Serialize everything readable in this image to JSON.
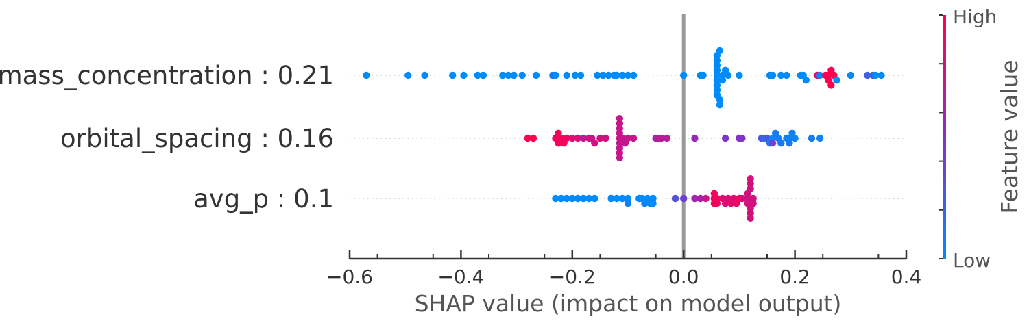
{
  "chart_data": {
    "type": "scatter",
    "title": "",
    "xlabel": "SHAP value (impact on model output)",
    "xlim": [
      -0.6,
      0.4
    ],
    "xticks": [
      "−0.6",
      "−0.4",
      "−0.2",
      "0.0",
      "0.2",
      "0.4"
    ],
    "xtick_values": [
      -0.6,
      -0.4,
      -0.2,
      0.0,
      0.2,
      0.4
    ],
    "features": [
      {
        "label": "mass_concentration : 0.21",
        "points": [
          {
            "x": -0.57,
            "v": 0.0
          },
          {
            "x": -0.495,
            "v": 0.0
          },
          {
            "x": -0.465,
            "v": 0.0
          },
          {
            "x": -0.415,
            "v": 0.0
          },
          {
            "x": -0.395,
            "v": 0.0
          },
          {
            "x": -0.37,
            "v": 0.0
          },
          {
            "x": -0.36,
            "v": 0.0
          },
          {
            "x": -0.325,
            "v": 0.0
          },
          {
            "x": -0.315,
            "v": 0.0
          },
          {
            "x": -0.305,
            "v": 0.0
          },
          {
            "x": -0.29,
            "v": 0.0
          },
          {
            "x": -0.265,
            "v": 0.0
          },
          {
            "x": -0.235,
            "v": 0.1
          },
          {
            "x": -0.23,
            "v": 0.0
          },
          {
            "x": -0.21,
            "v": 0.0
          },
          {
            "x": -0.195,
            "v": 0.0
          },
          {
            "x": -0.185,
            "v": 0.0
          },
          {
            "x": -0.155,
            "v": 0.0
          },
          {
            "x": -0.145,
            "v": 0.0
          },
          {
            "x": -0.135,
            "v": 0.0
          },
          {
            "x": -0.125,
            "v": 0.0
          },
          {
            "x": -0.12,
            "v": 0.0
          },
          {
            "x": -0.11,
            "v": 0.0
          },
          {
            "x": -0.1,
            "v": 0.0
          },
          {
            "x": -0.09,
            "v": 0.0
          },
          {
            "x": 0.0,
            "v": 0.0
          },
          {
            "x": 0.03,
            "v": 0.0
          },
          {
            "x": 0.035,
            "v": 0.0
          },
          {
            "x": 0.06,
            "v": 0.0
          },
          {
            "x": 0.06,
            "v": 0.0
          },
          {
            "x": 0.06,
            "v": 0.0
          },
          {
            "x": 0.06,
            "v": 0.0
          },
          {
            "x": 0.06,
            "v": 0.0
          },
          {
            "x": 0.06,
            "v": 0.0
          },
          {
            "x": 0.06,
            "v": 0.0
          },
          {
            "x": 0.06,
            "v": 0.0
          },
          {
            "x": 0.06,
            "v": 0.0
          },
          {
            "x": 0.065,
            "v": 0.0
          },
          {
            "x": 0.065,
            "v": 0.0
          },
          {
            "x": 0.065,
            "v": 0.0
          },
          {
            "x": 0.07,
            "v": 0.0
          },
          {
            "x": 0.07,
            "v": 0.0
          },
          {
            "x": 0.075,
            "v": 0.0
          },
          {
            "x": 0.08,
            "v": 0.0
          },
          {
            "x": 0.1,
            "v": 0.0
          },
          {
            "x": 0.155,
            "v": 0.0
          },
          {
            "x": 0.16,
            "v": 0.0
          },
          {
            "x": 0.175,
            "v": 0.0
          },
          {
            "x": 0.185,
            "v": 0.0
          },
          {
            "x": 0.21,
            "v": 0.0
          },
          {
            "x": 0.215,
            "v": 0.0
          },
          {
            "x": 0.22,
            "v": 0.0
          },
          {
            "x": 0.24,
            "v": 0.85
          },
          {
            "x": 0.245,
            "v": 0.0
          },
          {
            "x": 0.255,
            "v": 1.0
          },
          {
            "x": 0.26,
            "v": 1.0
          },
          {
            "x": 0.26,
            "v": 1.0
          },
          {
            "x": 0.265,
            "v": 1.0
          },
          {
            "x": 0.265,
            "v": 1.0
          },
          {
            "x": 0.27,
            "v": 1.0
          },
          {
            "x": 0.275,
            "v": 0.0
          },
          {
            "x": 0.3,
            "v": 0.0
          },
          {
            "x": 0.33,
            "v": 0.25
          },
          {
            "x": 0.34,
            "v": 0.2
          },
          {
            "x": 0.345,
            "v": 0.0
          },
          {
            "x": 0.355,
            "v": 0.0
          }
        ]
      },
      {
        "label": "orbital_spacing : 0.16",
        "points": [
          {
            "x": -0.28,
            "v": 1.0
          },
          {
            "x": -0.27,
            "v": 1.0
          },
          {
            "x": -0.23,
            "v": 0.95
          },
          {
            "x": -0.225,
            "v": 0.95
          },
          {
            "x": -0.22,
            "v": 0.95
          },
          {
            "x": -0.215,
            "v": 0.95
          },
          {
            "x": -0.21,
            "v": 0.95
          },
          {
            "x": -0.225,
            "v": 1.0
          },
          {
            "x": -0.2,
            "v": 0.85
          },
          {
            "x": -0.19,
            "v": 0.85
          },
          {
            "x": -0.18,
            "v": 0.7
          },
          {
            "x": -0.17,
            "v": 0.85
          },
          {
            "x": -0.165,
            "v": 0.75
          },
          {
            "x": -0.16,
            "v": 0.8
          },
          {
            "x": -0.15,
            "v": 0.8
          },
          {
            "x": -0.14,
            "v": 0.8
          },
          {
            "x": -0.115,
            "v": 0.75
          },
          {
            "x": -0.115,
            "v": 0.75
          },
          {
            "x": -0.115,
            "v": 0.75
          },
          {
            "x": -0.115,
            "v": 0.75
          },
          {
            "x": -0.115,
            "v": 0.75
          },
          {
            "x": -0.115,
            "v": 0.75
          },
          {
            "x": -0.115,
            "v": 0.75
          },
          {
            "x": -0.115,
            "v": 0.75
          },
          {
            "x": -0.115,
            "v": 0.75
          },
          {
            "x": -0.11,
            "v": 0.75
          },
          {
            "x": -0.105,
            "v": 0.75
          },
          {
            "x": -0.1,
            "v": 0.75
          },
          {
            "x": -0.09,
            "v": 0.75
          },
          {
            "x": -0.05,
            "v": 0.6
          },
          {
            "x": -0.045,
            "v": 0.7
          },
          {
            "x": -0.04,
            "v": 0.7
          },
          {
            "x": -0.03,
            "v": 0.7
          },
          {
            "x": 0.02,
            "v": 0.55
          },
          {
            "x": 0.075,
            "v": 0.45
          },
          {
            "x": 0.1,
            "v": 0.5
          },
          {
            "x": 0.105,
            "v": 0.45
          },
          {
            "x": 0.14,
            "v": 0.3
          },
          {
            "x": 0.145,
            "v": 0.15
          },
          {
            "x": 0.15,
            "v": 0.25
          },
          {
            "x": 0.155,
            "v": 0.1
          },
          {
            "x": 0.16,
            "v": 0.05
          },
          {
            "x": 0.16,
            "v": 0.4
          },
          {
            "x": 0.165,
            "v": 0.1
          },
          {
            "x": 0.17,
            "v": 0.05
          },
          {
            "x": 0.175,
            "v": 0.1
          },
          {
            "x": 0.185,
            "v": 0.05
          },
          {
            "x": 0.19,
            "v": 0.05
          },
          {
            "x": 0.19,
            "v": 0.1
          },
          {
            "x": 0.195,
            "v": 0.05
          },
          {
            "x": 0.2,
            "v": 0.05
          },
          {
            "x": 0.23,
            "v": 0.1
          },
          {
            "x": 0.245,
            "v": 0.05
          }
        ]
      },
      {
        "label": "avg_p : 0.1",
        "points": [
          {
            "x": -0.23,
            "v": 0.0
          },
          {
            "x": -0.22,
            "v": 0.0
          },
          {
            "x": -0.21,
            "v": 0.0
          },
          {
            "x": -0.2,
            "v": 0.0
          },
          {
            "x": -0.19,
            "v": 0.0
          },
          {
            "x": -0.18,
            "v": 0.0
          },
          {
            "x": -0.17,
            "v": 0.0
          },
          {
            "x": -0.16,
            "v": 0.0
          },
          {
            "x": -0.13,
            "v": 0.0
          },
          {
            "x": -0.12,
            "v": 0.0
          },
          {
            "x": -0.11,
            "v": 0.0
          },
          {
            "x": -0.1,
            "v": 0.0
          },
          {
            "x": -0.1,
            "v": 0.05
          },
          {
            "x": -0.08,
            "v": 0.0
          },
          {
            "x": -0.075,
            "v": 0.0
          },
          {
            "x": -0.07,
            "v": 0.05
          },
          {
            "x": -0.065,
            "v": 0.0
          },
          {
            "x": -0.06,
            "v": 0.0
          },
          {
            "x": -0.055,
            "v": 0.0
          },
          {
            "x": -0.055,
            "v": 0.0
          },
          {
            "x": -0.015,
            "v": 0.3
          },
          {
            "x": 0.0,
            "v": 0.4
          },
          {
            "x": 0.02,
            "v": 0.6
          },
          {
            "x": 0.03,
            "v": 0.65
          },
          {
            "x": 0.04,
            "v": 0.75
          },
          {
            "x": 0.055,
            "v": 0.95
          },
          {
            "x": 0.055,
            "v": 0.95
          },
          {
            "x": 0.055,
            "v": 0.95
          },
          {
            "x": 0.06,
            "v": 0.95
          },
          {
            "x": 0.06,
            "v": 0.95
          },
          {
            "x": 0.07,
            "v": 0.85
          },
          {
            "x": 0.075,
            "v": 0.85
          },
          {
            "x": 0.08,
            "v": 0.85
          },
          {
            "x": 0.085,
            "v": 0.9
          },
          {
            "x": 0.09,
            "v": 0.85
          },
          {
            "x": 0.095,
            "v": 0.9
          },
          {
            "x": 0.1,
            "v": 0.95
          },
          {
            "x": 0.105,
            "v": 0.8
          },
          {
            "x": 0.115,
            "v": 0.8
          },
          {
            "x": 0.115,
            "v": 0.8
          },
          {
            "x": 0.115,
            "v": 0.8
          },
          {
            "x": 0.12,
            "v": 0.8
          },
          {
            "x": 0.12,
            "v": 0.8
          },
          {
            "x": 0.12,
            "v": 0.8
          },
          {
            "x": 0.12,
            "v": 0.8
          },
          {
            "x": 0.12,
            "v": 0.8
          },
          {
            "x": 0.12,
            "v": 0.8
          },
          {
            "x": 0.125,
            "v": 0.8
          },
          {
            "x": 0.125,
            "v": 0.8
          }
        ]
      }
    ],
    "colorbar": {
      "title": "Feature value",
      "high_label": "High",
      "low_label": "Low",
      "low_color": "#008bfb",
      "mid_color": "#8a2ec4",
      "high_color": "#ff0051"
    },
    "zero_line_color": "#999999",
    "grid": false
  }
}
